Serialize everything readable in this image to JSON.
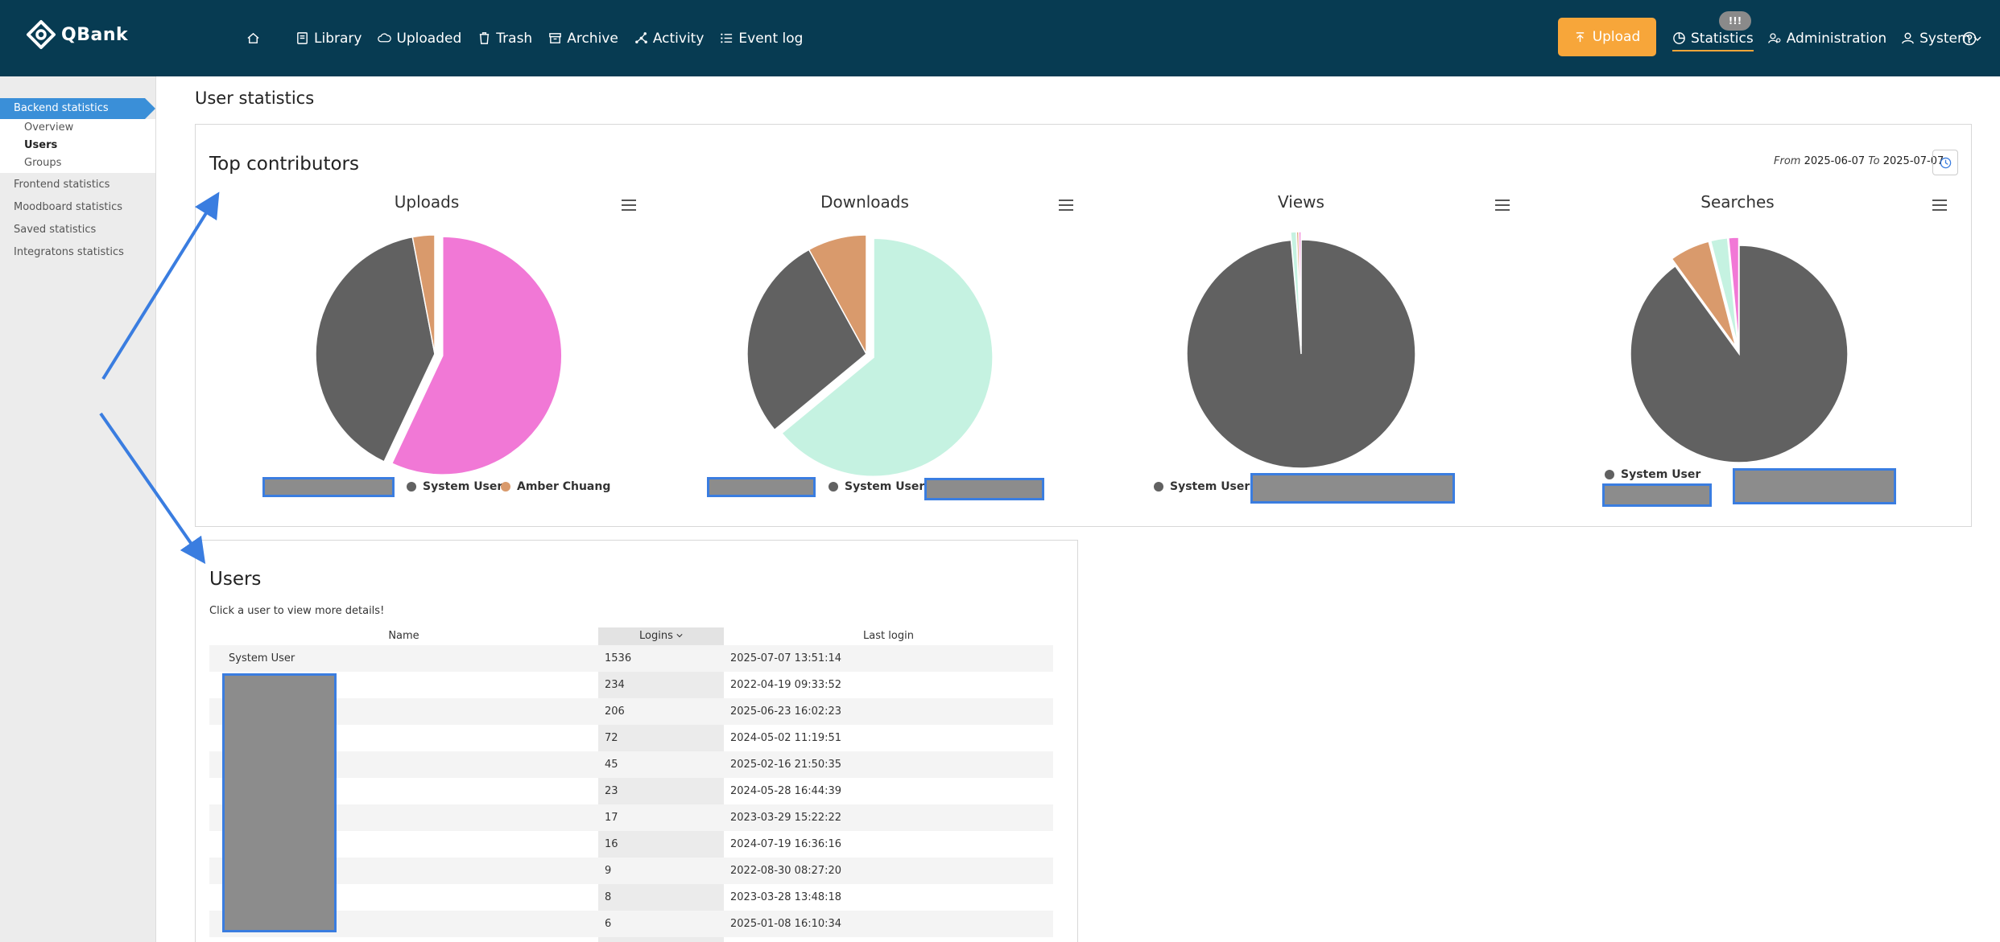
{
  "header": {
    "logo_text": "QBank",
    "nav": [
      {
        "label": "",
        "icon": "home-icon"
      },
      {
        "label": "Library",
        "icon": "library-icon"
      },
      {
        "label": "Uploaded",
        "icon": "cloud-icon"
      },
      {
        "label": "Trash",
        "icon": "trash-icon"
      },
      {
        "label": "Archive",
        "icon": "archive-icon"
      },
      {
        "label": "Activity",
        "icon": "activity-icon"
      },
      {
        "label": "Event log",
        "icon": "list-icon"
      }
    ],
    "upload_label": "Upload",
    "notification_badge": "!!!",
    "right_nav": [
      {
        "label": "Statistics",
        "icon": "statistics-icon",
        "active": true
      },
      {
        "label": "Administration",
        "icon": "admin-icon"
      },
      {
        "label": "System",
        "icon": "user-icon"
      }
    ],
    "colors": {
      "bar": "#073b52",
      "accent": "#f7a63a"
    }
  },
  "sidebar": {
    "active_section": "Backend statistics",
    "sub_items": [
      "Overview",
      "Users",
      "Groups"
    ],
    "current_sub": "Users",
    "sections": [
      "Frontend statistics",
      "Moodboard statistics",
      "Saved statistics",
      "Integratons statistics"
    ]
  },
  "page_title": "User statistics",
  "contributors": {
    "title": "Top contributors",
    "from_label": "From",
    "from_date": "2025-06-07",
    "to_label": "To",
    "to_date": "2025-07-07"
  },
  "chart_data": [
    {
      "type": "pie",
      "title": "Uploads",
      "slices": [
        {
          "name": "(redacted)",
          "value": 57,
          "color": "#f178d6",
          "sliced": true
        },
        {
          "name": "System User",
          "value": 40,
          "color": "#616161"
        },
        {
          "name": "Amber Chuang",
          "value": 3,
          "color": "#d99a6c"
        }
      ],
      "legend": [
        "System User",
        "Amber Chuang"
      ]
    },
    {
      "type": "pie",
      "title": "Downloads",
      "slices": [
        {
          "name": "(redacted)",
          "value": 64,
          "color": "#c5f2e1",
          "sliced": true
        },
        {
          "name": "System User",
          "value": 28,
          "color": "#616161"
        },
        {
          "name": "(redacted)",
          "value": 8,
          "color": "#d99a6c"
        }
      ],
      "legend": [
        "System User"
      ]
    },
    {
      "type": "pie",
      "title": "Views",
      "slices": [
        {
          "name": "System User",
          "value": 98.6,
          "color": "#616161"
        },
        {
          "name": "(redacted)",
          "value": 0.8,
          "color": "#c5f2e1",
          "sliced": true
        },
        {
          "name": "(redacted)",
          "value": 0.3,
          "color": "#d99a6c",
          "sliced": true
        },
        {
          "name": "(redacted)",
          "value": 0.3,
          "color": "#f178d6",
          "sliced": true
        }
      ],
      "legend": [
        "System User"
      ]
    },
    {
      "type": "pie",
      "title": "Searches",
      "slices": [
        {
          "name": "System User",
          "value": 90,
          "color": "#616161"
        },
        {
          "name": "(redacted)",
          "value": 6,
          "color": "#d99a6c",
          "sliced": true
        },
        {
          "name": "(redacted)",
          "value": 2.5,
          "color": "#c5f2e1",
          "sliced": true
        },
        {
          "name": "(redacted)",
          "value": 1.5,
          "color": "#f178d6",
          "sliced": true
        }
      ],
      "legend": [
        "System User"
      ]
    }
  ],
  "users": {
    "title": "Users",
    "hint": "Click a user to view more details!",
    "columns": [
      "Name",
      "Logins",
      "Last login"
    ],
    "rows": [
      {
        "name": "System User",
        "logins": "1536",
        "last": "2025-07-07 13:51:14"
      },
      {
        "name": "",
        "logins": "234",
        "last": "2022-04-19 09:33:52"
      },
      {
        "name": "",
        "logins": "206",
        "last": "2025-06-23 16:02:23"
      },
      {
        "name": "",
        "logins": "72",
        "last": "2024-05-02 11:19:51"
      },
      {
        "name": "",
        "logins": "45",
        "last": "2025-02-16 21:50:35"
      },
      {
        "name": "",
        "logins": "23",
        "last": "2024-05-28 16:44:39"
      },
      {
        "name": "",
        "logins": "17",
        "last": "2023-03-29 15:22:22"
      },
      {
        "name": "",
        "logins": "16",
        "last": "2024-07-19 16:36:16"
      },
      {
        "name": "",
        "logins": "9",
        "last": "2022-08-30 08:27:20"
      },
      {
        "name": "",
        "logins": "8",
        "last": "2023-03-28 13:48:18"
      },
      {
        "name": "",
        "logins": "6",
        "last": "2025-01-08 16:10:34"
      }
    ]
  }
}
